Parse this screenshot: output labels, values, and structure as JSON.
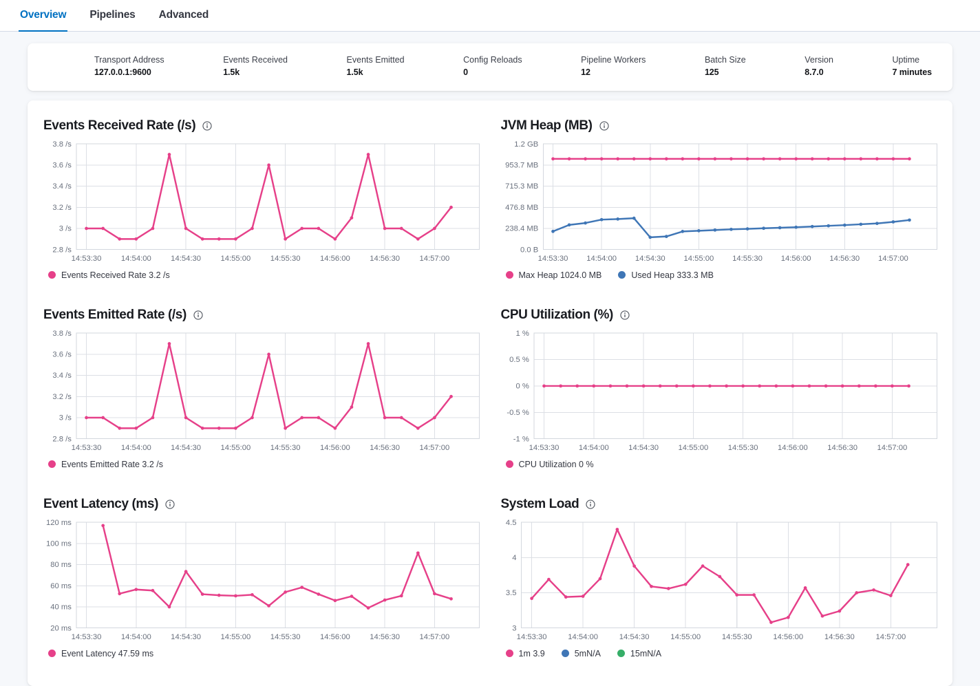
{
  "tabs": {
    "items": [
      {
        "label": "Overview",
        "active": true
      },
      {
        "label": "Pipelines",
        "active": false
      },
      {
        "label": "Advanced",
        "active": false
      }
    ]
  },
  "stats": {
    "items": [
      {
        "label": "Transport Address",
        "value": "127.0.0.1:9600"
      },
      {
        "label": "Events Received",
        "value": "1.5k"
      },
      {
        "label": "Events Emitted",
        "value": "1.5k"
      },
      {
        "label": "Config Reloads",
        "value": "0"
      },
      {
        "label": "Pipeline Workers",
        "value": "12"
      },
      {
        "label": "Batch Size",
        "value": "125"
      },
      {
        "label": "Version",
        "value": "8.7.0"
      },
      {
        "label": "Uptime",
        "value": "7 minutes"
      }
    ]
  },
  "colors": {
    "pink": "#e64089",
    "blue": "#3f76b6",
    "green": "#36ae68",
    "tab_active": "#0071c2",
    "grid": "#dcdfe5",
    "plot_border": "#d3d7de",
    "tick_text": "#69707d"
  },
  "chart_data": [
    {
      "id": "events-received-rate",
      "type": "line",
      "title": "Events Received Rate (/s)",
      "ylim": [
        2.8,
        3.8
      ],
      "y_ticks": [
        {
          "label": "3.8 /s",
          "value": 3.8
        },
        {
          "label": "3.6 /s",
          "value": 3.6
        },
        {
          "label": "3.4 /s",
          "value": 3.4
        },
        {
          "label": "3.2 /s",
          "value": 3.2
        },
        {
          "label": "3 /s",
          "value": 3.0
        },
        {
          "label": "2.8 /s",
          "value": 2.8
        }
      ],
      "categories": [
        "14:53:30",
        "14:53:40",
        "14:53:50",
        "14:54:00",
        "14:54:10",
        "14:54:20",
        "14:54:30",
        "14:54:40",
        "14:54:50",
        "14:55:00",
        "14:55:10",
        "14:55:20",
        "14:55:30",
        "14:55:40",
        "14:55:50",
        "14:56:00",
        "14:56:10",
        "14:56:20",
        "14:56:30",
        "14:56:40",
        "14:56:50",
        "14:57:00",
        "14:57:10"
      ],
      "x_tick_every": 3,
      "series": [
        {
          "name": "Events Received Rate",
          "color_key": "pink",
          "values": [
            3,
            3,
            2.9,
            2.9,
            3,
            3.7,
            3,
            2.9,
            2.9,
            2.9,
            3,
            3.6,
            2.9,
            3,
            3,
            2.9,
            3.1,
            3.7,
            3,
            3,
            2.9,
            3,
            3.2
          ]
        }
      ],
      "legend": [
        {
          "label": "Events Received Rate 3.2 /s",
          "color_key": "pink"
        }
      ]
    },
    {
      "id": "jvm-heap",
      "type": "line",
      "title": "JVM Heap (MB)",
      "ylim": [
        0,
        1192.1
      ],
      "y_ticks": [
        {
          "label": "1.2 GB",
          "value": 1192.1
        },
        {
          "label": "953.7 MB",
          "value": 953.7
        },
        {
          "label": "715.3 MB",
          "value": 715.3
        },
        {
          "label": "476.8 MB",
          "value": 476.8
        },
        {
          "label": "238.4 MB",
          "value": 238.4
        },
        {
          "label": "0.0 B",
          "value": 0
        }
      ],
      "categories": [
        "14:53:30",
        "14:53:40",
        "14:53:50",
        "14:54:00",
        "14:54:10",
        "14:54:20",
        "14:54:30",
        "14:54:40",
        "14:54:50",
        "14:55:00",
        "14:55:10",
        "14:55:20",
        "14:55:30",
        "14:55:40",
        "14:55:50",
        "14:56:00",
        "14:56:10",
        "14:56:20",
        "14:56:30",
        "14:56:40",
        "14:56:50",
        "14:57:00",
        "14:57:10"
      ],
      "x_tick_every": 3,
      "series": [
        {
          "name": "Max Heap",
          "color_key": "pink",
          "values": [
            1024,
            1024,
            1024,
            1024,
            1024,
            1024,
            1024,
            1024,
            1024,
            1024,
            1024,
            1024,
            1024,
            1024,
            1024,
            1024,
            1024,
            1024,
            1024,
            1024,
            1024,
            1024,
            1024
          ]
        },
        {
          "name": "Used Heap",
          "color_key": "blue",
          "values": [
            205,
            278,
            300,
            338,
            344,
            354,
            138,
            148,
            204,
            212,
            220,
            228,
            234,
            240,
            246,
            252,
            260,
            268,
            276,
            285,
            295,
            312,
            333.3
          ]
        }
      ],
      "legend": [
        {
          "label": "Max Heap 1024.0 MB",
          "color_key": "pink"
        },
        {
          "label": "Used Heap 333.3 MB",
          "color_key": "blue"
        }
      ]
    },
    {
      "id": "events-emitted-rate",
      "type": "line",
      "title": "Events Emitted Rate (/s)",
      "ylim": [
        2.8,
        3.8
      ],
      "y_ticks": [
        {
          "label": "3.8 /s",
          "value": 3.8
        },
        {
          "label": "3.6 /s",
          "value": 3.6
        },
        {
          "label": "3.4 /s",
          "value": 3.4
        },
        {
          "label": "3.2 /s",
          "value": 3.2
        },
        {
          "label": "3 /s",
          "value": 3.0
        },
        {
          "label": "2.8 /s",
          "value": 2.8
        }
      ],
      "categories": [
        "14:53:30",
        "14:53:40",
        "14:53:50",
        "14:54:00",
        "14:54:10",
        "14:54:20",
        "14:54:30",
        "14:54:40",
        "14:54:50",
        "14:55:00",
        "14:55:10",
        "14:55:20",
        "14:55:30",
        "14:55:40",
        "14:55:50",
        "14:56:00",
        "14:56:10",
        "14:56:20",
        "14:56:30",
        "14:56:40",
        "14:56:50",
        "14:57:00",
        "14:57:10"
      ],
      "x_tick_every": 3,
      "series": [
        {
          "name": "Events Emitted Rate",
          "color_key": "pink",
          "values": [
            3,
            3,
            2.9,
            2.9,
            3,
            3.7,
            3,
            2.9,
            2.9,
            2.9,
            3,
            3.6,
            2.9,
            3,
            3,
            2.9,
            3.1,
            3.7,
            3,
            3,
            2.9,
            3,
            3.2
          ]
        }
      ],
      "legend": [
        {
          "label": "Events Emitted Rate 3.2 /s",
          "color_key": "pink"
        }
      ]
    },
    {
      "id": "cpu-utilization",
      "type": "line",
      "title": "CPU Utilization (%)",
      "ylim": [
        -1,
        1
      ],
      "y_ticks": [
        {
          "label": "1 %",
          "value": 1
        },
        {
          "label": "0.5 %",
          "value": 0.5
        },
        {
          "label": "0 %",
          "value": 0
        },
        {
          "label": "-0.5 %",
          "value": -0.5
        },
        {
          "label": "-1 %",
          "value": -1
        }
      ],
      "categories": [
        "14:53:30",
        "14:53:40",
        "14:53:50",
        "14:54:00",
        "14:54:10",
        "14:54:20",
        "14:54:30",
        "14:54:40",
        "14:54:50",
        "14:55:00",
        "14:55:10",
        "14:55:20",
        "14:55:30",
        "14:55:40",
        "14:55:50",
        "14:56:00",
        "14:56:10",
        "14:56:20",
        "14:56:30",
        "14:56:40",
        "14:56:50",
        "14:57:00",
        "14:57:10"
      ],
      "x_tick_every": 3,
      "series": [
        {
          "name": "CPU Utilization",
          "color_key": "pink",
          "values": [
            0,
            0,
            0,
            0,
            0,
            0,
            0,
            0,
            0,
            0,
            0,
            0,
            0,
            0,
            0,
            0,
            0,
            0,
            0,
            0,
            0,
            0,
            0
          ]
        }
      ],
      "legend": [
        {
          "label": "CPU Utilization 0 %",
          "color_key": "pink"
        }
      ]
    },
    {
      "id": "event-latency",
      "type": "line",
      "title": "Event Latency (ms)",
      "ylim": [
        20,
        120
      ],
      "y_ticks": [
        {
          "label": "120 ms",
          "value": 120
        },
        {
          "label": "100 ms",
          "value": 100
        },
        {
          "label": "80 ms",
          "value": 80
        },
        {
          "label": "60 ms",
          "value": 60
        },
        {
          "label": "40 ms",
          "value": 40
        },
        {
          "label": "20 ms",
          "value": 20
        }
      ],
      "categories": [
        "14:53:30",
        "14:53:40",
        "14:53:50",
        "14:54:00",
        "14:54:10",
        "14:54:20",
        "14:54:30",
        "14:54:40",
        "14:54:50",
        "14:55:00",
        "14:55:10",
        "14:55:20",
        "14:55:30",
        "14:55:40",
        "14:55:50",
        "14:56:00",
        "14:56:10",
        "14:56:20",
        "14:56:30",
        "14:56:40",
        "14:56:50",
        "14:57:00",
        "14:57:10"
      ],
      "x_tick_every": 3,
      "series": [
        {
          "name": "Event Latency",
          "color_key": "pink",
          "values": [
            null,
            117,
            52.5,
            56.5,
            55.5,
            40,
            73.5,
            52,
            51,
            50.5,
            51.5,
            41,
            54,
            58.5,
            52,
            46,
            50,
            39,
            46.5,
            50.5,
            91,
            52.5,
            47.59
          ]
        }
      ],
      "legend": [
        {
          "label": "Event Latency 47.59 ms",
          "color_key": "pink"
        }
      ]
    },
    {
      "id": "system-load",
      "type": "line",
      "title": "System Load",
      "ylim": [
        3,
        4.5
      ],
      "y_ticks": [
        {
          "label": "4.5",
          "value": 4.5
        },
        {
          "label": "4",
          "value": 4
        },
        {
          "label": "3.5",
          "value": 3.5
        },
        {
          "label": "3",
          "value": 3
        }
      ],
      "categories": [
        "14:53:30",
        "14:53:40",
        "14:53:50",
        "14:54:00",
        "14:54:10",
        "14:54:20",
        "14:54:30",
        "14:54:40",
        "14:54:50",
        "14:55:00",
        "14:55:10",
        "14:55:20",
        "14:55:30",
        "14:55:40",
        "14:55:50",
        "14:56:00",
        "14:56:10",
        "14:56:20",
        "14:56:30",
        "14:56:40",
        "14:56:50",
        "14:57:00",
        "14:57:10"
      ],
      "x_tick_every": 3,
      "series": [
        {
          "name": "1m",
          "color_key": "pink",
          "values": [
            3.42,
            3.69,
            3.44,
            3.45,
            3.7,
            4.4,
            3.88,
            3.59,
            3.56,
            3.62,
            3.88,
            3.73,
            3.47,
            3.47,
            3.08,
            3.15,
            3.57,
            3.17,
            3.24,
            3.5,
            3.54,
            3.46,
            3.9
          ]
        }
      ],
      "legend": [
        {
          "label": "1m 3.9",
          "color_key": "pink"
        },
        {
          "label": "5mN/A",
          "color_key": "blue"
        },
        {
          "label": "15mN/A",
          "color_key": "green"
        }
      ]
    }
  ]
}
